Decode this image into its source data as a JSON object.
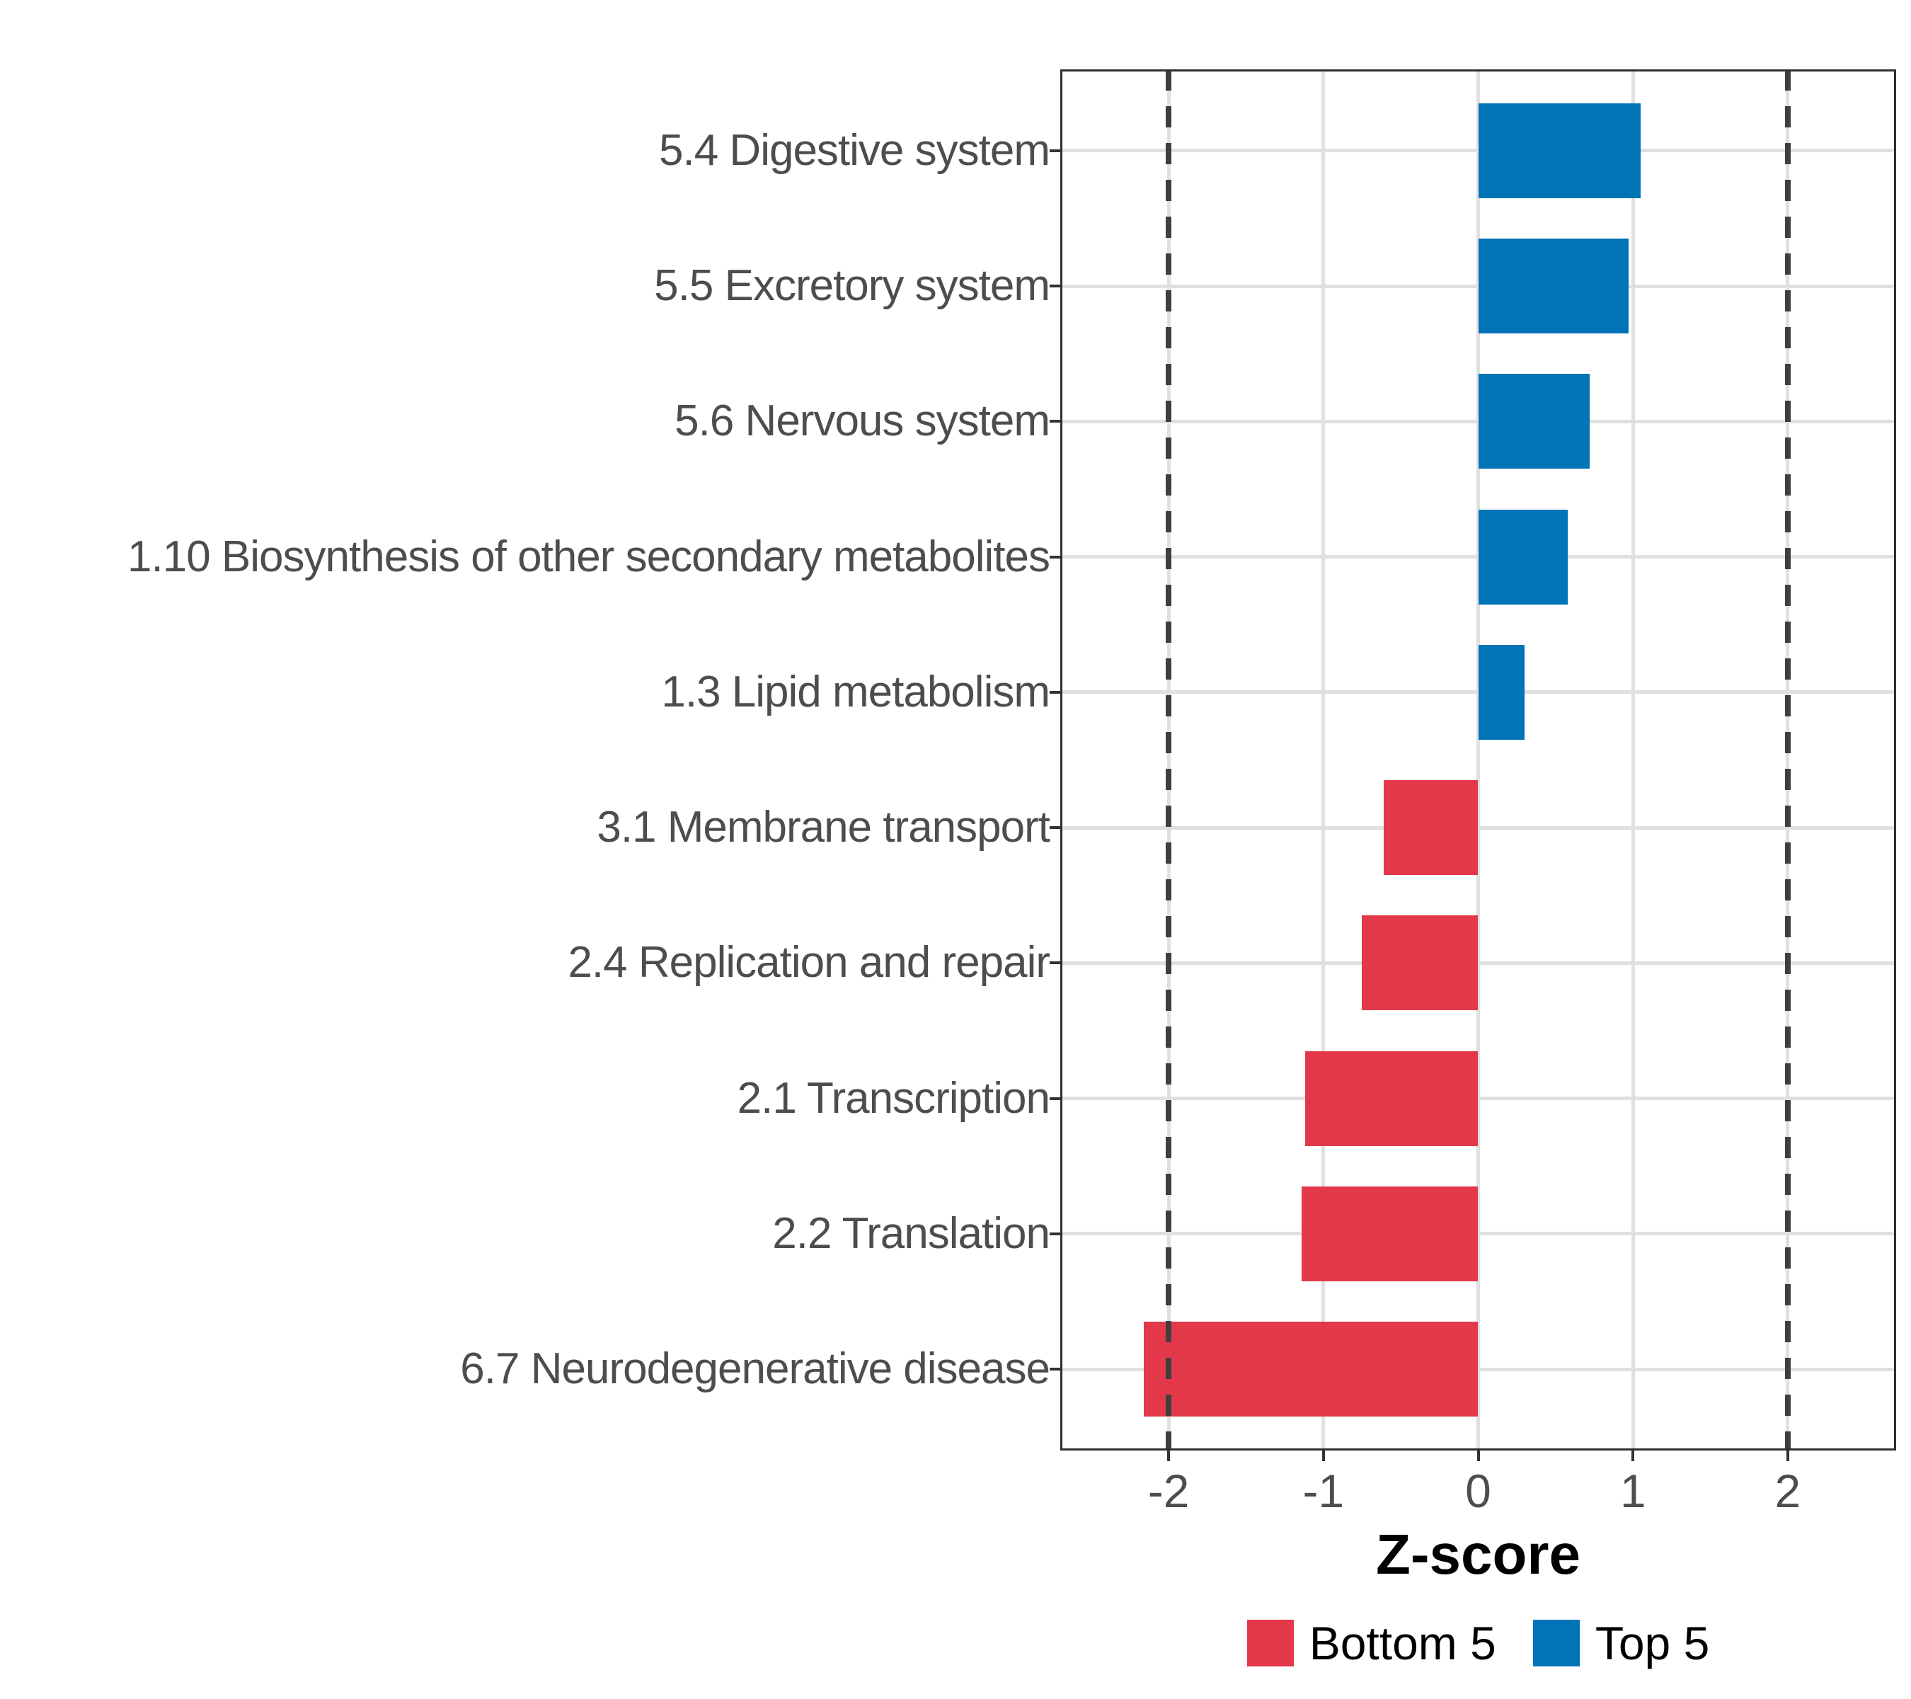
{
  "chart_data": {
    "type": "bar",
    "orientation": "horizontal",
    "title": "",
    "xlabel": "Z-score",
    "ylabel": "",
    "xlim": [
      -2.7,
      2.7
    ],
    "x_ticks": [
      -2,
      -1,
      0,
      1,
      2
    ],
    "x_tick_labels": [
      "-2",
      "-1",
      "0",
      "1",
      "2"
    ],
    "reference_lines_dashed": [
      -2,
      2
    ],
    "grid": "major-only",
    "legend_position": "bottom",
    "categories": [
      "5.4 Digestive system",
      "5.5 Excretory system",
      "5.6 Nervous system",
      "1.10 Biosynthesis of other secondary metabolites",
      "1.3 Lipid metabolism",
      "3.1 Membrane transport",
      "2.4 Replication and repair",
      "2.1 Transcription",
      "2.2 Translation",
      "6.7 Neurodegenerative disease"
    ],
    "values": [
      1.05,
      0.97,
      0.72,
      0.58,
      0.3,
      -0.61,
      -0.75,
      -1.12,
      -1.14,
      -2.16
    ],
    "groups": [
      "Top 5",
      "Top 5",
      "Top 5",
      "Top 5",
      "Top 5",
      "Bottom 5",
      "Bottom 5",
      "Bottom 5",
      "Bottom 5",
      "Bottom 5"
    ],
    "legend": [
      {
        "label": "Bottom 5",
        "color": "#e3384a"
      },
      {
        "label": "Top 5",
        "color": "#0074b7"
      }
    ],
    "colors": {
      "top5_bar": "#0074b7",
      "bottom5_bar": "#e3384a",
      "gridline": "#e0e0e0",
      "dashed_reference": "#3f3f3f",
      "axis_text": "#4d4d4d",
      "panel_border": "#2e2e2e",
      "axis_title_text": "#000000"
    }
  }
}
